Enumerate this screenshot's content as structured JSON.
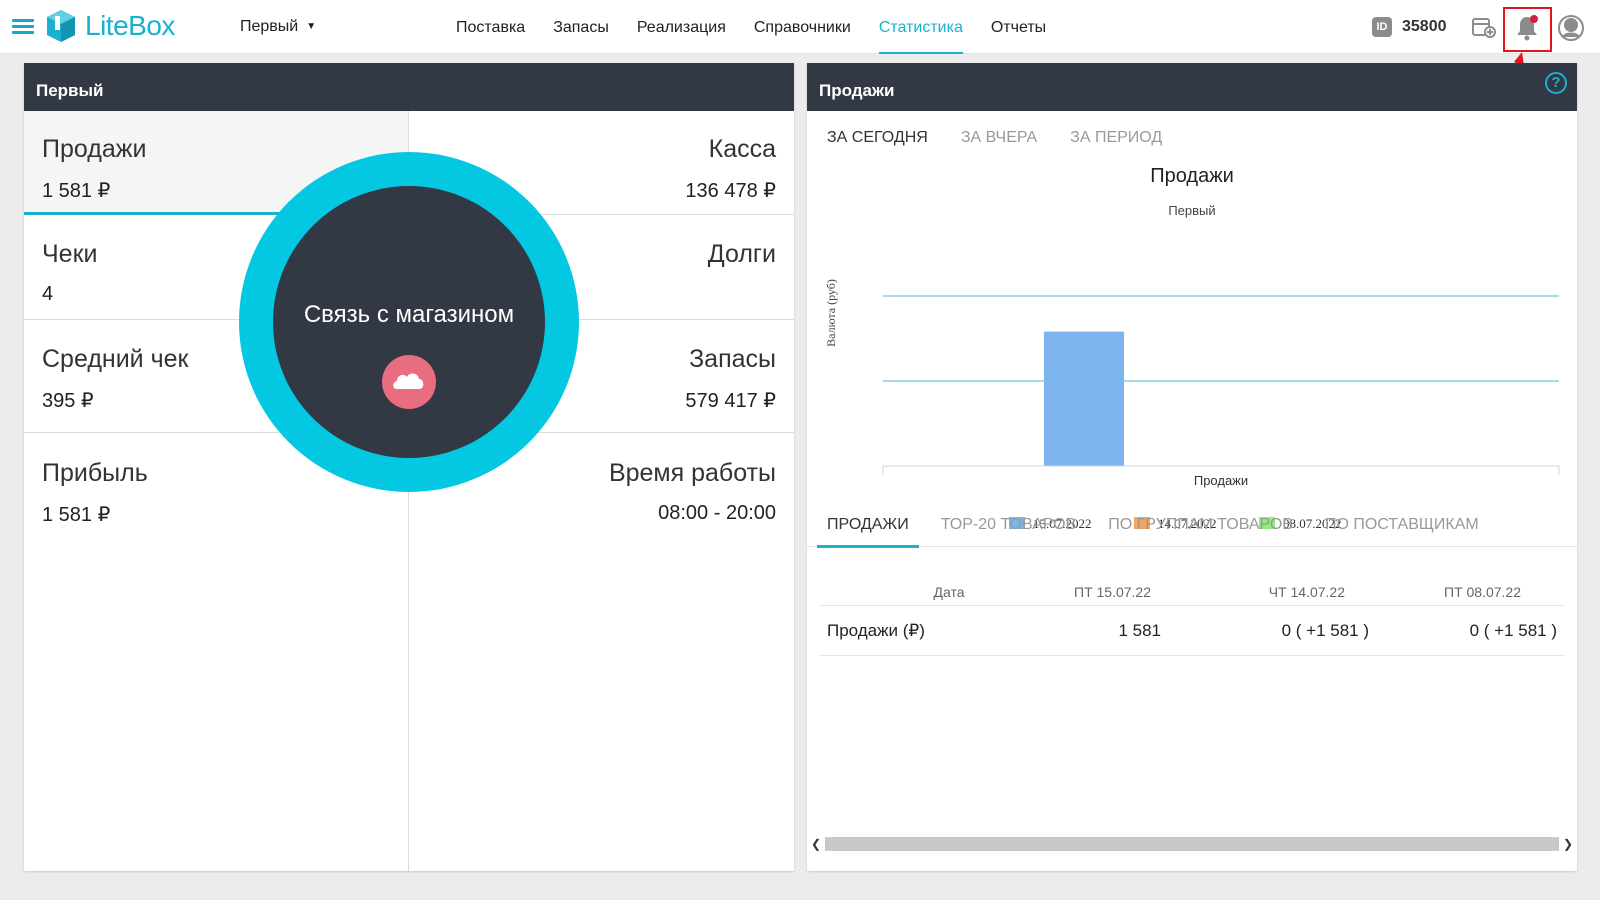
{
  "header": {
    "app_name": "LiteBox",
    "store_select": "Первый",
    "nav": [
      "Поставка",
      "Запасы",
      "Реализация",
      "Справочники",
      "Статистика",
      "Отчеты"
    ],
    "active_nav": "Статистика",
    "id_badge": "ID",
    "id_value": "35800",
    "accent": "#1ab0cf"
  },
  "left_panel": {
    "title": "Первый",
    "stats": [
      {
        "label": "Продажи",
        "value": "1 581 ₽"
      },
      {
        "label": "Касса",
        "value": "136 478 ₽"
      },
      {
        "label": "Чеки",
        "value": "4"
      },
      {
        "label": "Долги",
        "value": ""
      },
      {
        "label": "Средний чек",
        "value": "395 ₽"
      },
      {
        "label": "Запасы",
        "value": "579 417 ₽"
      },
      {
        "label": "Прибыль",
        "value": "1 581 ₽"
      },
      {
        "label": "Время работы",
        "value": "08:00 - 20:00"
      }
    ],
    "overlay_text": "Связь с магазином"
  },
  "right_panel": {
    "title": "Продажи",
    "period_tabs": [
      "ЗА СЕГОДНЯ",
      "ЗА ВЧЕРА",
      "ЗА ПЕРИОД"
    ],
    "bottom_tabs": [
      "ПРОДАЖИ",
      "ТОР-20 ТОВАРОВ",
      "ПО ГРУППАМ ТОВАРОВ",
      "ПО ПОСТАВЩИКАМ"
    ],
    "table": {
      "headers": [
        "Дата",
        "ПТ 15.07.22",
        "ЧТ 14.07.22",
        "ПТ 08.07.22"
      ],
      "rows": [
        [
          "Продажи (₽)",
          "1 581",
          "0 ( +1 581 )",
          "0 ( +1 581 )"
        ]
      ]
    }
  },
  "chart_data": {
    "type": "bar",
    "title": "Продажи",
    "subtitle": "Первый",
    "xlabel": "Продажи",
    "ylabel": "Валюта (руб)",
    "categories": [
      "Продажи"
    ],
    "series": [
      {
        "name": "15.07.2022",
        "values": [
          1581
        ],
        "color": "#7cb5ec"
      },
      {
        "name": "14.07.2022",
        "values": [
          0
        ],
        "color": "#f7a35c"
      },
      {
        "name": "08.07.2022",
        "values": [
          0
        ],
        "color": "#90ed7d"
      }
    ],
    "ylim": [
      0,
      2000
    ],
    "grid": true,
    "legend": "bottom"
  }
}
